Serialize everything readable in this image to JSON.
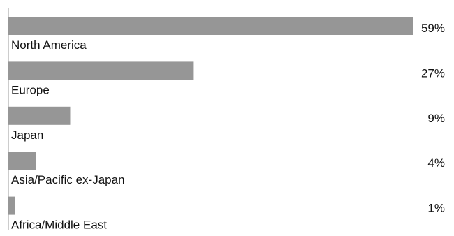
{
  "chart_data": {
    "type": "bar",
    "orientation": "horizontal",
    "categories": [
      "North America",
      "Europe",
      "Japan",
      "Asia/Pacific ex-Japan",
      "Africa/Middle East"
    ],
    "values": [
      59,
      27,
      9,
      4,
      1
    ],
    "value_labels": [
      "59%",
      "27%",
      "9%",
      "4%",
      "1%"
    ],
    "xlim": [
      0,
      59
    ],
    "grid": false,
    "legend": "none",
    "colors": {
      "bar": "#969696",
      "axis": "#9a9a9a",
      "text": "#111111"
    }
  }
}
